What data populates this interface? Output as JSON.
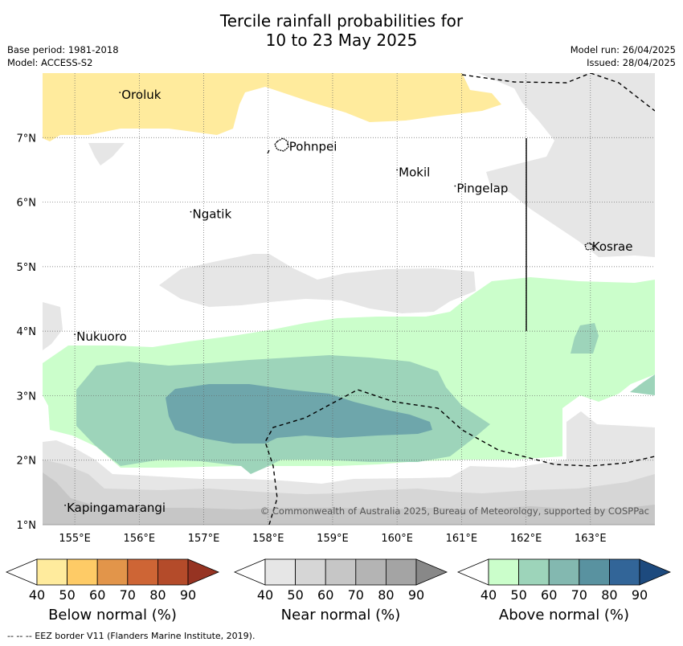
{
  "title_line1": "Tercile rainfall probabilities for",
  "title_line2": "10 to 23 May 2025",
  "base_period": "Base period: 1981-2018",
  "model": "Model: ACCESS-S2",
  "model_run": "Model run: 26/04/2025",
  "issued": "Issued: 28/04/2025",
  "copyright": "© Commonwealth of Australia 2025, Bureau of Meteorology, supported by COSPPac",
  "footer": "--  --  -- EEZ border V11 (Flanders Marine Institute, 2019).",
  "map": {
    "lon_range": [
      154.5,
      164.0
    ],
    "lat_range": [
      1.0,
      8.0
    ],
    "lon_ticks": [
      "155°E",
      "156°E",
      "157°E",
      "158°E",
      "159°E",
      "160°E",
      "161°E",
      "162°E",
      "163°E"
    ],
    "lat_ticks": [
      "1°N",
      "2°N",
      "3°N",
      "4°N",
      "5°N",
      "6°N",
      "7°N"
    ],
    "places": [
      {
        "name": "Oroluk",
        "lon": 155.7,
        "lat": 7.65
      },
      {
        "name": "Pohnpei",
        "lon": 158.3,
        "lat": 6.85
      },
      {
        "name": "Mokil",
        "lon": 160.0,
        "lat": 6.45
      },
      {
        "name": "Pingelap",
        "lon": 160.9,
        "lat": 6.2
      },
      {
        "name": "Ngatik",
        "lon": 156.8,
        "lat": 5.8
      },
      {
        "name": "Kosrae",
        "lon": 163.0,
        "lat": 5.3
      },
      {
        "name": "Nukuoro",
        "lon": 155.0,
        "lat": 3.9
      },
      {
        "name": "Kapingamarangi",
        "lon": 154.85,
        "lat": 1.25
      }
    ],
    "colors": {
      "below_40": "#ffeb9d",
      "near_40": "#e6e6e6",
      "near_50": "#d6d6d6",
      "near_60": "#c6c6c6",
      "above_40": "#cbfecb",
      "above_50": "#9dd4ba",
      "above_60": "#6ea6ab"
    }
  },
  "colorbars": [
    {
      "title": "Below normal (%)",
      "ticks": [
        "40",
        "50",
        "60",
        "70",
        "80",
        "90"
      ],
      "colors": [
        "#ffeb9d",
        "#fecb66",
        "#e2954a",
        "#ce6535",
        "#b44b2a",
        "#963322"
      ]
    },
    {
      "title": "Near normal (%)",
      "ticks": [
        "40",
        "50",
        "60",
        "70",
        "80",
        "90"
      ],
      "colors": [
        "#e6e6e6",
        "#d6d6d6",
        "#c6c6c6",
        "#b4b4b4",
        "#a4a4a4",
        "#888888"
      ]
    },
    {
      "title": "Above normal (%)",
      "ticks": [
        "40",
        "50",
        "60",
        "70",
        "80",
        "90"
      ],
      "colors": [
        "#cbfecb",
        "#9dd4ba",
        "#83b8b0",
        "#5992a0",
        "#326598",
        "#1d4a7e"
      ]
    }
  ]
}
